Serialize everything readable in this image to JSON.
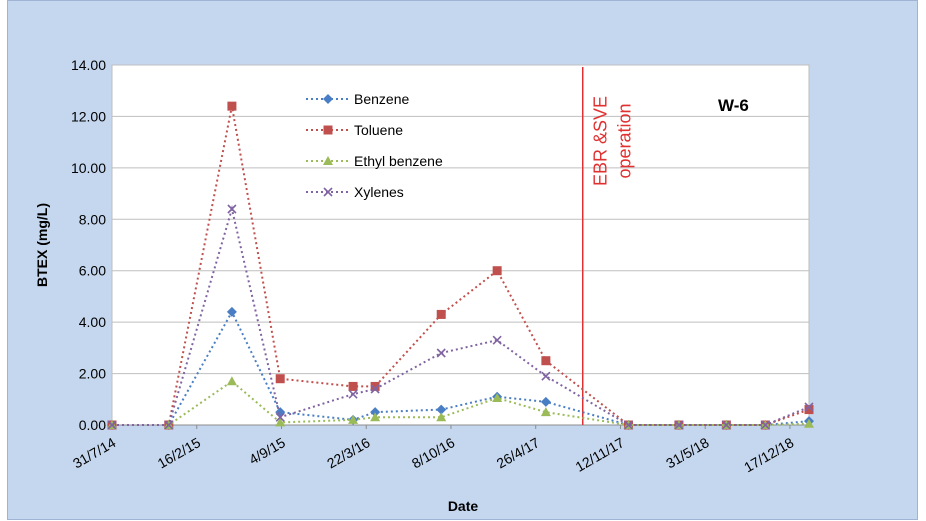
{
  "chart_data": {
    "type": "line",
    "title": "",
    "xlabel": "Date",
    "ylabel": "BTEX (mg/L)",
    "ylim": [
      0,
      14
    ],
    "y_ticks": [
      "0.00",
      "2.00",
      "4.00",
      "6.00",
      "8.00",
      "10.00",
      "12.00",
      "14.00"
    ],
    "x_ticks": [
      {
        "label": "31/7/14",
        "date": "2014-07-31"
      },
      {
        "label": "16/2/15",
        "date": "2015-02-16"
      },
      {
        "label": "4/9/15",
        "date": "2015-09-04"
      },
      {
        "label": "22/3/16",
        "date": "2016-03-22"
      },
      {
        "label": "8/10/16",
        "date": "2016-10-08"
      },
      {
        "label": "26/4/17",
        "date": "2017-04-26"
      },
      {
        "label": "12/11/17",
        "date": "2017-11-12"
      },
      {
        "label": "31/5/18",
        "date": "2018-05-31"
      },
      {
        "label": "17/12/18",
        "date": "2018-12-17"
      }
    ],
    "xlim": [
      "2014-07-31",
      "2019-01-31"
    ],
    "grid": "horizontal",
    "legend_position": "top-center",
    "well_label": "W-6",
    "annotation": {
      "lines": [
        "EBR &SVE",
        "operation"
      ],
      "date": "2017-08-15",
      "color": "#e03030"
    },
    "x": [
      "2014-07-31",
      "2014-12-12",
      "2015-05-10",
      "2015-09-01",
      "2016-02-20",
      "2016-04-12",
      "2016-09-15",
      "2017-01-25",
      "2017-05-20",
      "2017-12-01",
      "2018-03-30",
      "2018-07-20",
      "2018-10-20",
      "2019-01-31"
    ],
    "series": [
      {
        "name": "Benzene",
        "color": "#4a7ec4",
        "marker": "diamond",
        "values": [
          0.0,
          0.0,
          4.4,
          0.5,
          0.2,
          0.5,
          0.6,
          1.1,
          0.9,
          0.0,
          0.0,
          0.0,
          0.0,
          0.15
        ]
      },
      {
        "name": "Toluene",
        "color": "#c0504d",
        "marker": "square",
        "values": [
          0.0,
          0.0,
          12.4,
          1.8,
          1.5,
          1.5,
          4.3,
          6.0,
          2.5,
          0.0,
          0.0,
          0.0,
          0.0,
          0.6
        ]
      },
      {
        "name": "Ethyl benzene",
        "color": "#9bbb59",
        "marker": "triangle",
        "values": [
          0.0,
          0.0,
          1.7,
          0.1,
          0.2,
          0.3,
          0.3,
          1.05,
          0.5,
          0.0,
          0.0,
          0.0,
          0.0,
          0.05
        ]
      },
      {
        "name": "Xylenes",
        "color": "#8064a2",
        "marker": "x",
        "values": [
          0.0,
          0.0,
          8.4,
          0.3,
          1.2,
          1.4,
          2.8,
          3.3,
          1.9,
          0.0,
          0.0,
          0.0,
          0.0,
          0.7
        ]
      }
    ]
  }
}
